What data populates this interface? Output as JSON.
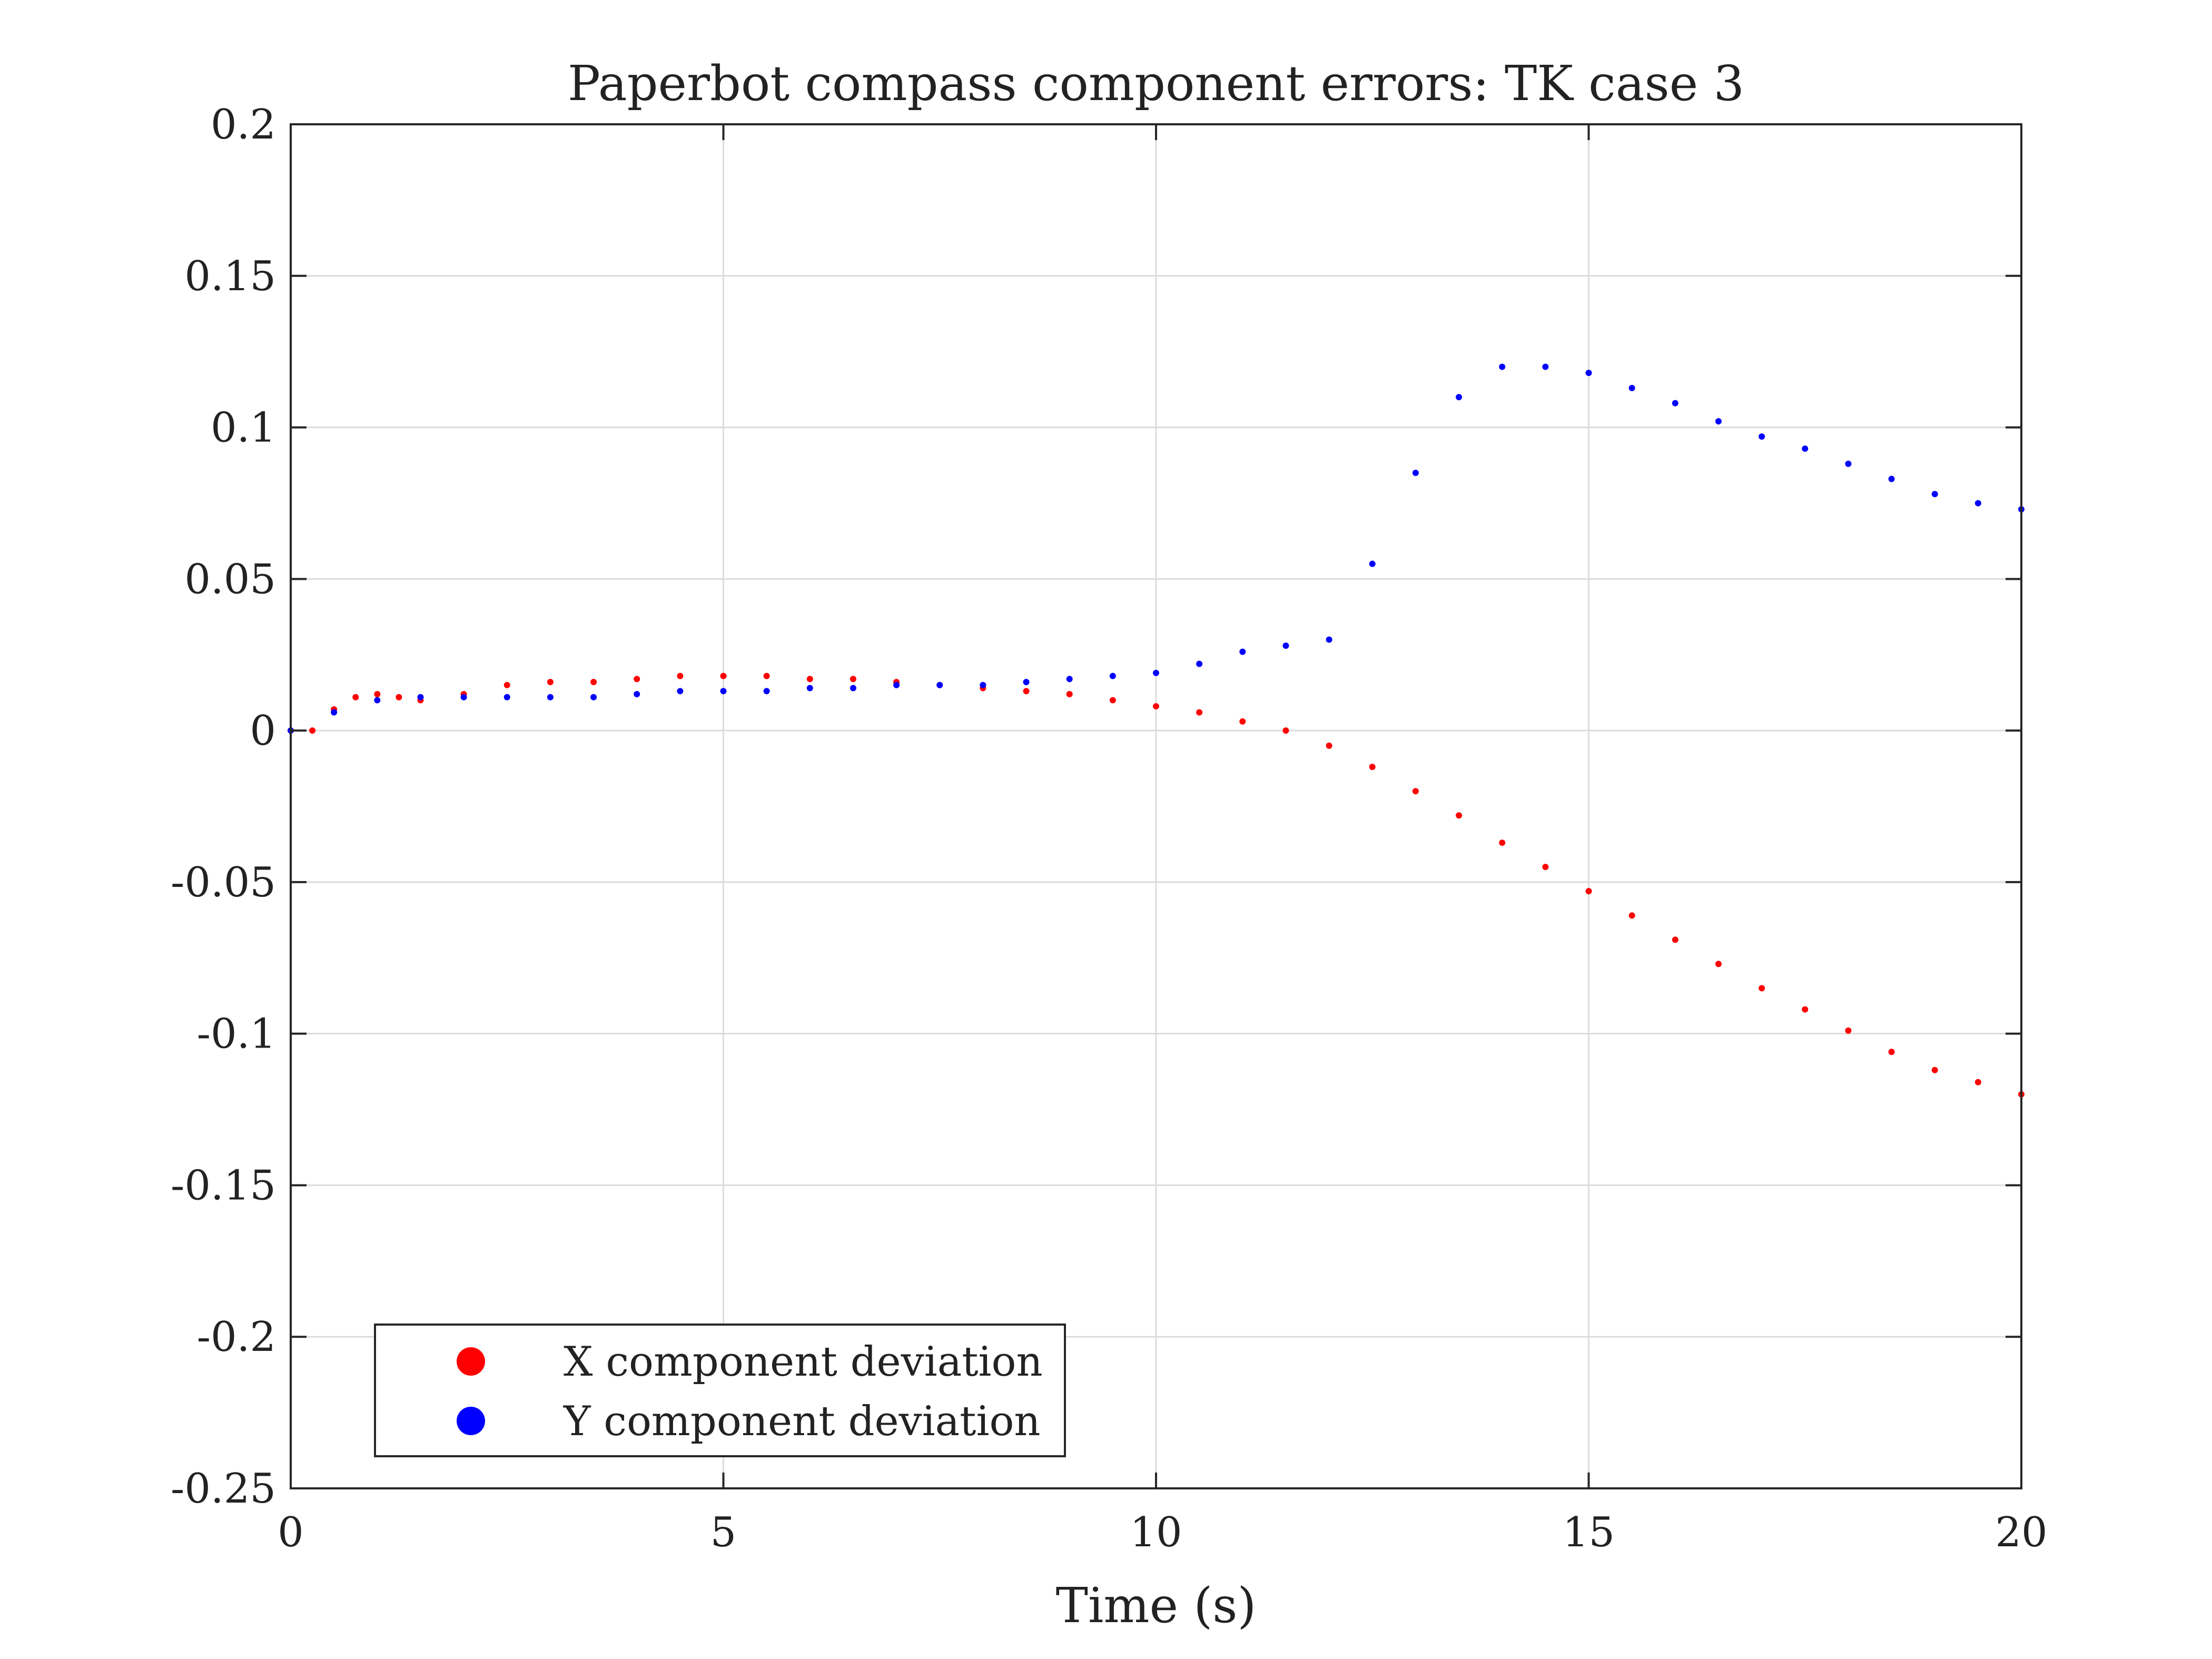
{
  "chart_data": {
    "type": "scatter",
    "title": "Paperbot compass component errors: TK case 3",
    "xlabel": "Time (s)",
    "ylabel": "",
    "xlim": [
      0,
      20
    ],
    "ylim": [
      -0.25,
      0.2
    ],
    "xticks": [
      0,
      5,
      10,
      15,
      20
    ],
    "xtick_labels": [
      "0",
      "5",
      "10",
      "15",
      "20"
    ],
    "yticks": [
      -0.25,
      -0.2,
      -0.15,
      -0.1,
      -0.05,
      0,
      0.05,
      0.1,
      0.15,
      0.2
    ],
    "ytick_labels": [
      "-0.25",
      "-0.2",
      "-0.15",
      "-0.1",
      "-0.05",
      "0",
      "0.05",
      "0.1",
      "0.15",
      "0.2"
    ],
    "grid": true,
    "legend_position": "bottom-left",
    "series": [
      {
        "name": "X component deviation",
        "color": "#ff0000",
        "x": [
          0.0,
          0.25,
          0.5,
          0.75,
          1.0,
          1.25,
          1.5,
          2.0,
          2.5,
          3.0,
          3.5,
          4.0,
          4.5,
          5.0,
          5.5,
          6.0,
          6.5,
          7.0,
          7.5,
          8.0,
          8.5,
          9.0,
          9.5,
          10.0,
          10.5,
          11.0,
          11.5,
          12.0,
          12.5,
          13.0,
          13.5,
          14.0,
          14.5,
          15.0,
          15.5,
          16.0,
          16.5,
          17.0,
          17.5,
          18.0,
          18.5,
          19.0,
          19.5,
          20.0
        ],
        "y": [
          0.0,
          0.0,
          0.007,
          0.011,
          0.012,
          0.011,
          0.01,
          0.012,
          0.015,
          0.016,
          0.016,
          0.017,
          0.018,
          0.018,
          0.018,
          0.017,
          0.017,
          0.016,
          0.015,
          0.014,
          0.013,
          0.012,
          0.01,
          0.008,
          0.006,
          0.003,
          0.0,
          -0.005,
          -0.012,
          -0.02,
          -0.028,
          -0.037,
          -0.045,
          -0.053,
          -0.061,
          -0.069,
          -0.077,
          -0.085,
          -0.092,
          -0.099,
          -0.106,
          -0.112,
          -0.116,
          -0.12
        ]
      },
      {
        "name": "Y component deviation",
        "color": "#0000ff",
        "x": [
          0.0,
          0.5,
          1.0,
          1.5,
          2.0,
          2.5,
          3.0,
          3.5,
          4.0,
          4.5,
          5.0,
          5.5,
          6.0,
          6.5,
          7.0,
          7.5,
          8.0,
          8.5,
          9.0,
          9.5,
          10.0,
          10.5,
          11.0,
          11.5,
          12.0,
          12.5,
          13.0,
          13.5,
          14.0,
          14.5,
          15.0,
          15.5,
          16.0,
          16.5,
          17.0,
          17.5,
          18.0,
          18.5,
          19.0,
          19.5,
          20.0
        ],
        "y": [
          0.0,
          0.006,
          0.01,
          0.011,
          0.011,
          0.011,
          0.011,
          0.011,
          0.012,
          0.013,
          0.013,
          0.013,
          0.014,
          0.014,
          0.015,
          0.015,
          0.015,
          0.016,
          0.017,
          0.018,
          0.019,
          0.022,
          0.026,
          0.028,
          0.03,
          0.055,
          0.085,
          0.11,
          0.12,
          0.12,
          0.118,
          0.113,
          0.108,
          0.102,
          0.097,
          0.093,
          0.088,
          0.083,
          0.078,
          0.075,
          0.073
        ]
      }
    ]
  }
}
